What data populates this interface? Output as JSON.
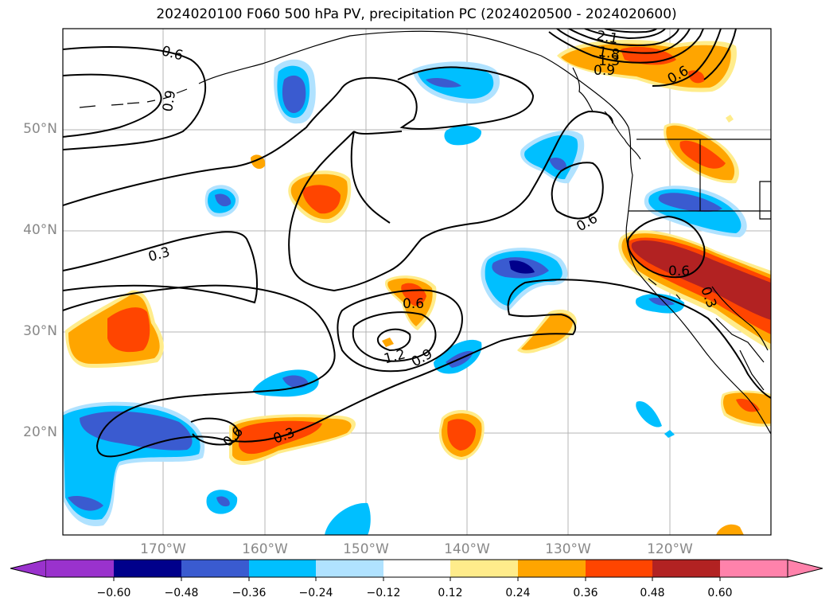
{
  "title": "2024020100 F060 500 hPa PV, precipitation PC (2024020500 - 2024020600)",
  "lat_labels": [
    "50°N",
    "40°N",
    "30°N",
    "20°N"
  ],
  "lon_labels": [
    "170°W",
    "160°W",
    "150°W",
    "140°W",
    "130°W",
    "120°W"
  ],
  "contour_labels": [
    "0.6",
    "0.9",
    "0.3",
    "0.6",
    "1.2",
    "0.9",
    "0.6",
    "0.6",
    "0.3",
    "0.6",
    "2.1",
    "1.8",
    "1.3",
    "0.9",
    "0.6",
    "0.3"
  ],
  "colorbar": {
    "ticks": [
      "−0.60",
      "−0.48",
      "−0.36",
      "−0.24",
      "−0.12",
      "0.12",
      "0.24",
      "0.36",
      "0.48",
      "0.60"
    ],
    "colors": [
      "#9a32cd",
      "#00008b",
      "#3a5bd0",
      "#00bfff",
      "#b0e2ff",
      "#ffffff",
      "#ffec8b",
      "#ffa500",
      "#ff4500",
      "#b22222",
      "#ff82ab"
    ]
  },
  "colors": {
    "neg_light": "#b0e2ff",
    "neg_mid": "#00bfff",
    "neg_strong": "#3a5bd0",
    "neg_max": "#00008b",
    "pos_light": "#ffec8b",
    "pos_mid": "#ffa500",
    "pos_strong": "#ff4500",
    "pos_max": "#b22222"
  }
}
